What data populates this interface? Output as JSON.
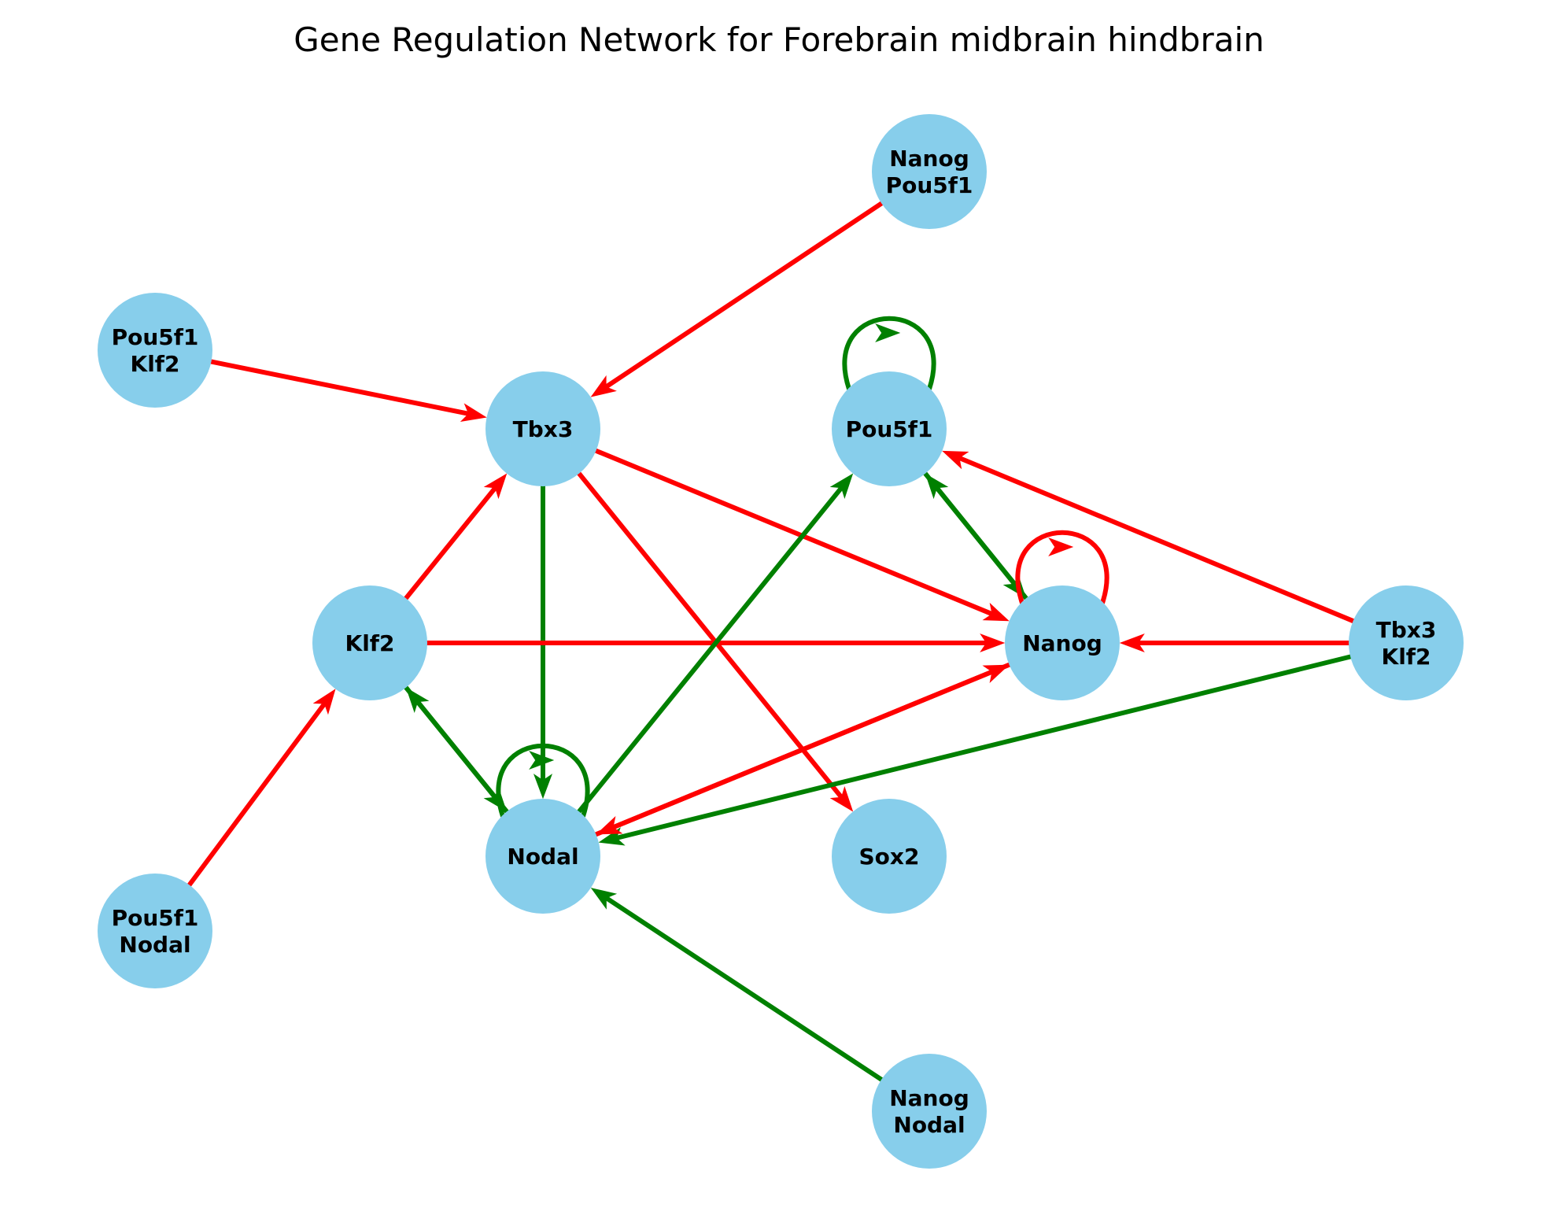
{
  "title": "Gene Regulation Network for Forebrain midbrain hindbrain",
  "colors": {
    "node_fill": "#87ceeb",
    "activation": "#008000",
    "repression": "#ff0000",
    "label": "#000000"
  },
  "legend": {
    "activation": "green edge",
    "repression": "red edge"
  },
  "nodes": [
    {
      "id": "tbx3",
      "lines": [
        "Tbx3"
      ]
    },
    {
      "id": "pou5f1",
      "lines": [
        "Pou5f1"
      ]
    },
    {
      "id": "klf2",
      "lines": [
        "Klf2"
      ]
    },
    {
      "id": "nanog",
      "lines": [
        "Nanog"
      ]
    },
    {
      "id": "nodal",
      "lines": [
        "Nodal"
      ]
    },
    {
      "id": "sox2",
      "lines": [
        "Sox2"
      ]
    },
    {
      "id": "nanog-pou5f1",
      "lines": [
        "Nanog",
        "Pou5f1"
      ]
    },
    {
      "id": "pou5f1-klf2",
      "lines": [
        "Pou5f1",
        "Klf2"
      ]
    },
    {
      "id": "tbx3-klf2",
      "lines": [
        "Tbx3",
        "Klf2"
      ]
    },
    {
      "id": "pou5f1-nodal",
      "lines": [
        "Pou5f1",
        "Nodal"
      ]
    },
    {
      "id": "nanog-nodal",
      "lines": [
        "Nanog",
        "Nodal"
      ]
    }
  ],
  "edges": [
    {
      "from": "nanog-pou5f1",
      "to": "tbx3",
      "type": "repression"
    },
    {
      "from": "pou5f1-klf2",
      "to": "tbx3",
      "type": "repression"
    },
    {
      "from": "klf2",
      "to": "tbx3",
      "type": "repression"
    },
    {
      "from": "tbx3",
      "to": "nanog",
      "type": "repression"
    },
    {
      "from": "tbx3",
      "to": "sox2",
      "type": "repression"
    },
    {
      "from": "tbx3",
      "to": "nodal",
      "type": "activation"
    },
    {
      "from": "pou5f1",
      "to": "pou5f1",
      "type": "activation"
    },
    {
      "from": "pou5f1",
      "to": "nanog",
      "type": "activation"
    },
    {
      "from": "nanog",
      "to": "pou5f1",
      "type": "activation"
    },
    {
      "from": "nanog",
      "to": "nanog",
      "type": "repression"
    },
    {
      "from": "tbx3-klf2",
      "to": "pou5f1",
      "type": "repression"
    },
    {
      "from": "tbx3-klf2",
      "to": "nanog",
      "type": "repression"
    },
    {
      "from": "tbx3-klf2",
      "to": "nodal",
      "type": "activation"
    },
    {
      "from": "klf2",
      "to": "nanog",
      "type": "repression"
    },
    {
      "from": "klf2",
      "to": "nodal",
      "type": "activation"
    },
    {
      "from": "nodal",
      "to": "klf2",
      "type": "activation"
    },
    {
      "from": "nodal",
      "to": "nodal",
      "type": "activation"
    },
    {
      "from": "nodal",
      "to": "pou5f1",
      "type": "activation"
    },
    {
      "from": "nanog",
      "to": "nodal",
      "type": "repression"
    },
    {
      "from": "nodal",
      "to": "nanog",
      "type": "repression"
    },
    {
      "from": "pou5f1-nodal",
      "to": "klf2",
      "type": "repression"
    },
    {
      "from": "nanog-nodal",
      "to": "nodal",
      "type": "activation"
    }
  ]
}
